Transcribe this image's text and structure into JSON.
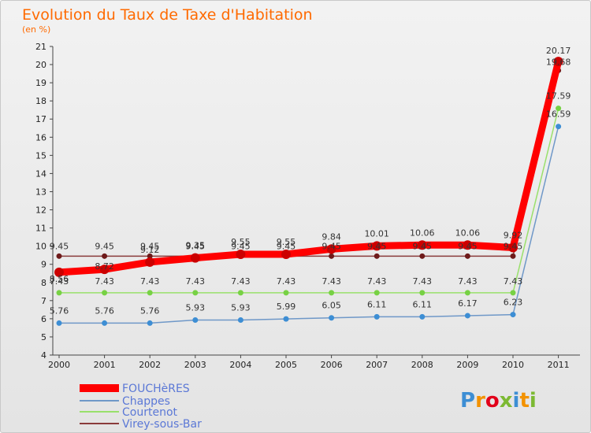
{
  "chart_data": {
    "type": "line",
    "title": "Evolution du Taux de Taxe d'Habitation",
    "subtitle": "(en %)",
    "x": [
      "2000",
      "2001",
      "2002",
      "2003",
      "2004",
      "2005",
      "2006",
      "2007",
      "2008",
      "2009",
      "2010",
      "2011"
    ],
    "ylim": [
      4,
      21
    ],
    "yticks": [
      4,
      5,
      6,
      7,
      8,
      9,
      10,
      11,
      12,
      13,
      14,
      15,
      16,
      17,
      18,
      19,
      20,
      21
    ],
    "grid": false,
    "legend_position": "bottom-left",
    "series": [
      {
        "name": "FOUCHèRES",
        "color": "#ff0000",
        "marker_color": "#cc0000",
        "values": [
          8.56,
          8.72,
          9.12,
          9.35,
          9.55,
          9.55,
          9.84,
          10.01,
          10.06,
          10.06,
          9.92,
          20.17
        ],
        "labels": [
          "8.56",
          "8.72",
          "9.12",
          "9.35",
          "9.55",
          "9.55",
          "9.84",
          "10.01",
          "10.06",
          "10.06",
          "9.92",
          "20.17"
        ]
      },
      {
        "name": "Chappes",
        "color": "#6f98c8",
        "marker_color": "#3d8ed4",
        "values": [
          5.76,
          5.76,
          5.76,
          5.93,
          5.93,
          5.99,
          6.05,
          6.11,
          6.11,
          6.17,
          6.23,
          16.59
        ],
        "labels": [
          "5.76",
          "5.76",
          "5.76",
          "5.93",
          "5.93",
          "5.99",
          "6.05",
          "6.11",
          "6.11",
          "6.17",
          "6.23",
          "16.59"
        ]
      },
      {
        "name": "Courtenot",
        "color": "#99e06b",
        "marker_color": "#77d144",
        "values": [
          7.43,
          7.43,
          7.43,
          7.43,
          7.43,
          7.43,
          7.43,
          7.43,
          7.43,
          7.43,
          7.43,
          17.59
        ],
        "labels": [
          "7.43",
          "7.43",
          "7.43",
          "7.43",
          "7.43",
          "7.43",
          "7.43",
          "7.43",
          "7.43",
          "7.43",
          "7.43",
          "17.59"
        ]
      },
      {
        "name": "Virey-sous-Bar",
        "color": "#8a3b3b",
        "marker_color": "#6e1a1a",
        "values": [
          9.45,
          9.45,
          9.45,
          9.45,
          9.45,
          9.45,
          9.45,
          9.45,
          9.45,
          9.45,
          9.45,
          19.68
        ],
        "labels": [
          "9.45",
          "9.45",
          "9.45",
          "9.45",
          "9.45",
          "9.45",
          "9.45",
          "9.45",
          "9.45",
          "9.45",
          "9.45",
          "19.68"
        ]
      }
    ]
  },
  "logo": {
    "text": "Proxiti",
    "letters": [
      "P",
      "r",
      "o",
      "x",
      "i",
      "t",
      "i"
    ],
    "colors": [
      "#3d8ed4",
      "#f39200",
      "#e2001a",
      "#7cb932",
      "#3d8ed4",
      "#f39200",
      "#7cb932"
    ]
  }
}
